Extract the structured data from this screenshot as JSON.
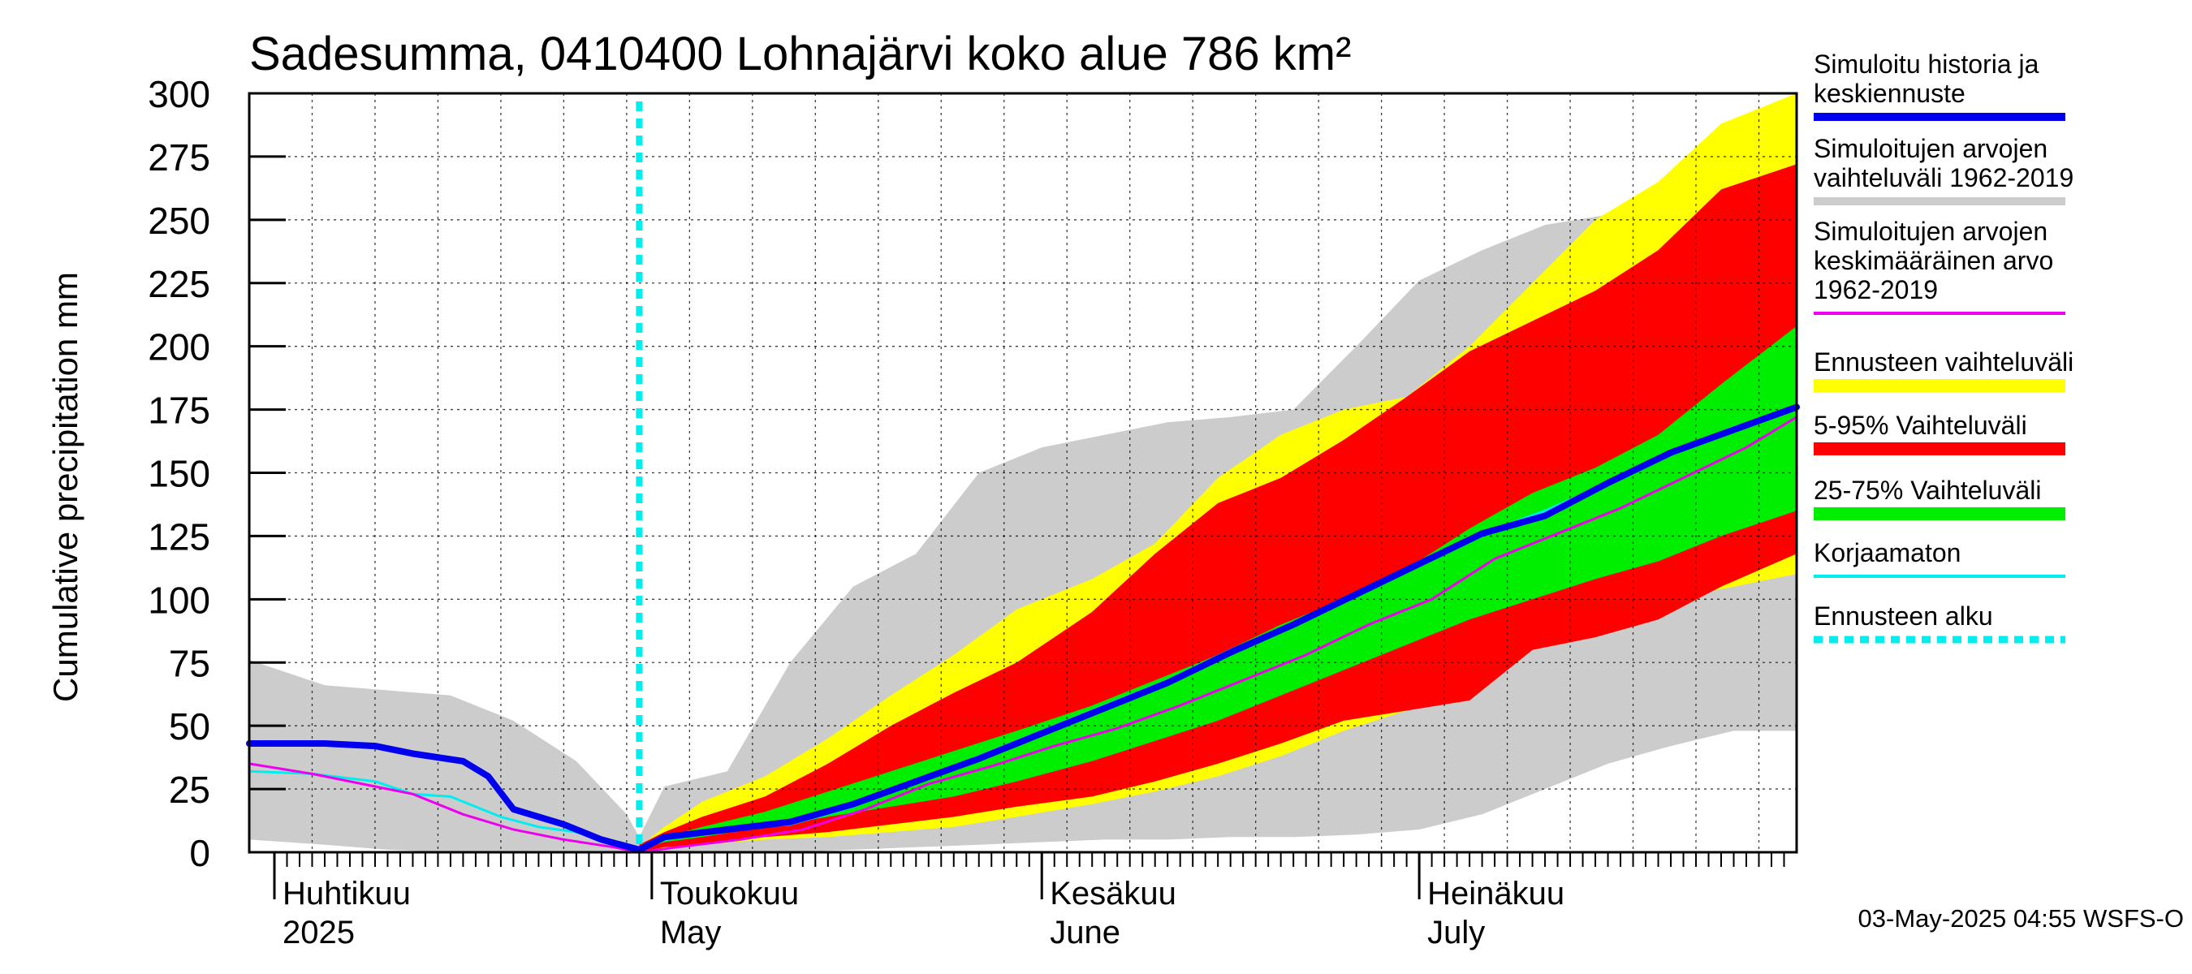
{
  "chart_data": {
    "type": "area",
    "title": "Sadesumma, 0410400 Lohnajärvi koko alue 786 km²",
    "ylabel": "Cumulative precipitation   mm",
    "xlim": [
      "2025-03-30",
      "2025-07-31"
    ],
    "ylim": [
      0,
      300
    ],
    "yticks": [
      0,
      25,
      50,
      75,
      100,
      125,
      150,
      175,
      200,
      225,
      250,
      275,
      300
    ],
    "grid": true,
    "legend_position": "right",
    "month_labels": [
      {
        "fi": "Huhtikuu",
        "en": "2025",
        "date": "2025-04-01"
      },
      {
        "fi": "Toukokuu",
        "en": "May",
        "date": "2025-05-01"
      },
      {
        "fi": "Kesäkuu",
        "en": "June",
        "date": "2025-06-01"
      },
      {
        "fi": "Heinäkuu",
        "en": "July",
        "date": "2025-07-01"
      }
    ],
    "forecast_start": "2025-04-30",
    "footer": "03-May-2025 04:55 WSFS-O",
    "legend": [
      {
        "label": [
          "Simuloitu historia ja",
          "keskiennuste"
        ],
        "color": "#0000ee",
        "style": "line"
      },
      {
        "label": [
          "Simuloitujen arvojen",
          "vaihteluväli 1962-2019"
        ],
        "color": "#cccccc",
        "style": "line"
      },
      {
        "label": [
          "Simuloitujen arvojen",
          "keskimääräinen arvo",
          "   1962-2019"
        ],
        "color": "#ee00ee",
        "style": "thin"
      },
      {
        "label": [
          "Ennusteen vaihteluväli"
        ],
        "color": "#ffff00",
        "style": "bar"
      },
      {
        "label": [
          "5-95% Vaihteluväli"
        ],
        "color": "#ff0000",
        "style": "bar"
      },
      {
        "label": [
          "25-75% Vaihteluväli"
        ],
        "color": "#00ee00",
        "style": "bar"
      },
      {
        "label": [
          "Korjaamaton"
        ],
        "color": "#00eeee",
        "style": "thin"
      },
      {
        "label": [
          "Ennusteen alku"
        ],
        "color": "#00eeee",
        "style": "dotted"
      }
    ],
    "series": [
      {
        "name": "Simuloitujen arvojen vaihteluväli 1962-2019",
        "kind": "band",
        "color": "#cccccc",
        "x": [
          "2025-03-30",
          "2025-04-05",
          "2025-04-10",
          "2025-04-15",
          "2025-04-20",
          "2025-04-25",
          "2025-04-29",
          "2025-04-30",
          "2025-05-02",
          "2025-05-07",
          "2025-05-12",
          "2025-05-17",
          "2025-05-22",
          "2025-05-27",
          "2025-06-01",
          "2025-06-06",
          "2025-06-11",
          "2025-06-16",
          "2025-06-21",
          "2025-06-26",
          "2025-07-01",
          "2025-07-06",
          "2025-07-11",
          "2025-07-16",
          "2025-07-21",
          "2025-07-26",
          "2025-07-31"
        ],
        "low": [
          5,
          3,
          1,
          0,
          0,
          0,
          0,
          0,
          0,
          0,
          0,
          1,
          2,
          3,
          4,
          5,
          5,
          6,
          6,
          7,
          9,
          15,
          25,
          35,
          42,
          48,
          48
        ],
        "high": [
          76,
          66,
          64,
          62,
          52,
          36,
          15,
          6,
          26,
          32,
          75,
          105,
          118,
          150,
          160,
          165,
          170,
          172,
          175,
          200,
          226,
          238,
          248,
          252,
          252,
          262,
          285
        ]
      },
      {
        "name": "Ennusteen vaihteluväli",
        "kind": "band",
        "color": "#ffff00",
        "x": [
          "2025-04-30",
          "2025-05-02",
          "2025-05-05",
          "2025-05-10",
          "2025-05-15",
          "2025-05-20",
          "2025-05-25",
          "2025-05-30",
          "2025-06-05",
          "2025-06-10",
          "2025-06-15",
          "2025-06-20",
          "2025-06-25",
          "2025-06-30",
          "2025-07-05",
          "2025-07-10",
          "2025-07-15",
          "2025-07-20",
          "2025-07-25",
          "2025-07-31"
        ],
        "low": [
          0,
          1,
          3,
          5,
          6,
          8,
          10,
          14,
          19,
          24,
          30,
          38,
          48,
          56,
          70,
          90,
          96,
          100,
          104,
          110
        ],
        "high": [
          2,
          10,
          20,
          30,
          45,
          62,
          78,
          96,
          108,
          122,
          148,
          165,
          175,
          180,
          200,
          225,
          250,
          265,
          288,
          300
        ]
      },
      {
        "name": "5-95% Vaihteluväli",
        "kind": "band",
        "color": "#ff0000",
        "x": [
          "2025-04-30",
          "2025-05-02",
          "2025-05-05",
          "2025-05-10",
          "2025-05-15",
          "2025-05-20",
          "2025-05-25",
          "2025-05-30",
          "2025-06-05",
          "2025-06-10",
          "2025-06-15",
          "2025-06-20",
          "2025-06-25",
          "2025-06-30",
          "2025-07-05",
          "2025-07-10",
          "2025-07-15",
          "2025-07-20",
          "2025-07-25",
          "2025-07-31"
        ],
        "low": [
          0,
          2,
          3,
          6,
          8,
          11,
          14,
          18,
          22,
          28,
          35,
          43,
          52,
          56,
          60,
          80,
          85,
          92,
          105,
          118
        ],
        "high": [
          3,
          8,
          14,
          22,
          35,
          50,
          63,
          75,
          95,
          118,
          138,
          148,
          163,
          180,
          198,
          210,
          222,
          238,
          262,
          272
        ]
      },
      {
        "name": "25-75% Vaihteluväli",
        "kind": "band",
        "color": "#00ee00",
        "x": [
          "2025-04-30",
          "2025-05-02",
          "2025-05-05",
          "2025-05-10",
          "2025-05-15",
          "2025-05-20",
          "2025-05-25",
          "2025-05-30",
          "2025-06-05",
          "2025-06-10",
          "2025-06-15",
          "2025-06-20",
          "2025-06-25",
          "2025-06-30",
          "2025-07-05",
          "2025-07-10",
          "2025-07-15",
          "2025-07-20",
          "2025-07-25",
          "2025-07-31"
        ],
        "low": [
          1,
          4,
          6,
          10,
          14,
          18,
          22,
          28,
          36,
          44,
          52,
          62,
          72,
          82,
          92,
          100,
          108,
          115,
          125,
          135
        ],
        "high": [
          2,
          6,
          10,
          16,
          24,
          32,
          40,
          48,
          58,
          68,
          78,
          90,
          100,
          112,
          128,
          142,
          152,
          165,
          185,
          208
        ]
      },
      {
        "name": "Korjaamaton",
        "kind": "line",
        "color": "#00eeee",
        "width": 3,
        "x": [
          "2025-03-30",
          "2025-04-04",
          "2025-04-09",
          "2025-04-12",
          "2025-04-15",
          "2025-04-19",
          "2025-04-22",
          "2025-04-25",
          "2025-04-28",
          "2025-04-30",
          "2025-05-02",
          "2025-05-07",
          "2025-05-12",
          "2025-05-17",
          "2025-05-22",
          "2025-05-27",
          "2025-06-01",
          "2025-06-06",
          "2025-06-11",
          "2025-06-16",
          "2025-06-21",
          "2025-06-26",
          "2025-07-01",
          "2025-07-06",
          "2025-07-11",
          "2025-07-16",
          "2025-07-21",
          "2025-07-26",
          "2025-07-31"
        ],
        "y": [
          32,
          31,
          28,
          23,
          22,
          14,
          10,
          8,
          3,
          1,
          5,
          9,
          11,
          18,
          28,
          38,
          48,
          58,
          68,
          80,
          90,
          102,
          114,
          126,
          135,
          146,
          158,
          168,
          176
        ]
      },
      {
        "name": "Simuloitujen arvojen keskimääräinen arvo 1962-2019",
        "kind": "line",
        "color": "#ee00ee",
        "width": 3,
        "x": [
          "2025-03-30",
          "2025-04-04",
          "2025-04-08",
          "2025-04-12",
          "2025-04-16",
          "2025-04-20",
          "2025-04-24",
          "2025-04-28",
          "2025-04-30",
          "2025-05-03",
          "2025-05-08",
          "2025-05-13",
          "2025-05-18",
          "2025-05-23",
          "2025-05-28",
          "2025-06-02",
          "2025-06-07",
          "2025-06-12",
          "2025-06-17",
          "2025-06-22",
          "2025-06-27",
          "2025-07-02",
          "2025-07-07",
          "2025-07-12",
          "2025-07-17",
          "2025-07-22",
          "2025-07-27",
          "2025-07-31"
        ],
        "y": [
          35,
          31,
          27,
          23,
          15,
          9,
          5,
          2,
          0,
          2,
          5,
          9,
          17,
          27,
          34,
          42,
          49,
          58,
          68,
          78,
          90,
          100,
          116,
          126,
          136,
          148,
          160,
          172
        ]
      },
      {
        "name": "Simuloitu historia ja keskiennuste",
        "kind": "line",
        "color": "#0000ee",
        "width": 8,
        "x": [
          "2025-03-30",
          "2025-04-05",
          "2025-04-09",
          "2025-04-12",
          "2025-04-16",
          "2025-04-18",
          "2025-04-20",
          "2025-04-24",
          "2025-04-27",
          "2025-04-30",
          "2025-05-02",
          "2025-05-07",
          "2025-05-12",
          "2025-05-17",
          "2025-05-22",
          "2025-05-27",
          "2025-06-01",
          "2025-06-06",
          "2025-06-11",
          "2025-06-16",
          "2025-06-21",
          "2025-06-26",
          "2025-07-01",
          "2025-07-06",
          "2025-07-11",
          "2025-07-16",
          "2025-07-21",
          "2025-07-26",
          "2025-07-31"
        ],
        "y": [
          43,
          43,
          42,
          39,
          36,
          30,
          17,
          11,
          5,
          1,
          6,
          9,
          12,
          19,
          28,
          37,
          47,
          57,
          67,
          79,
          90,
          102,
          114,
          126,
          133,
          146,
          158,
          167,
          176
        ]
      },
      {
        "name": "Ennusteen alku",
        "kind": "vline",
        "color": "#00eeee",
        "width": 8,
        "x": "2025-04-30"
      }
    ]
  }
}
